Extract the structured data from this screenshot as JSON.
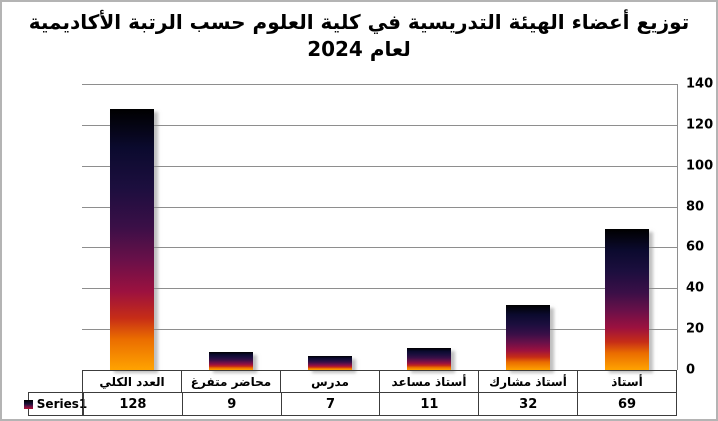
{
  "frame": {
    "background": "#ffffff",
    "border_color": "#b4b4b4"
  },
  "title": {
    "line1": "توزيع أعضاء الهيئة التدريسية في كلية العلوم حسب الرتبة الأكاديمية",
    "line2": "لعام 2024"
  },
  "legend": {
    "label": "Series1"
  },
  "chart_data": {
    "type": "bar",
    "title": "توزيع أعضاء الهيئة التدريسية في كلية العلوم حسب الرتبة الأكاديمية لعام 2024",
    "categories": [
      "العدد الكلي",
      "محاضر متفرغ",
      "مدرس",
      "أستاذ مساعد",
      "أستاذ مشارك",
      "أستاذ"
    ],
    "series": [
      {
        "name": "Series1",
        "values": [
          128,
          9,
          7,
          11,
          32,
          69
        ]
      }
    ],
    "ylim": [
      0,
      140
    ],
    "yticks": [
      0,
      20,
      40,
      60,
      80,
      100,
      120,
      140
    ],
    "grid": true,
    "value_axis_side": "right",
    "legend_position": "bottom-left-of-data-table",
    "data_table_shown": true,
    "gridline_color": "#8e8e8e",
    "table_border_color": "#3c3c3c",
    "bar_gradient_top_to_bottom": [
      "#000000",
      "#0b0a2e",
      "#1c0e3e",
      "#3a0f47",
      "#6a1049",
      "#9c113f",
      "#c62c17",
      "#ea6c00",
      "#ffa300"
    ]
  }
}
